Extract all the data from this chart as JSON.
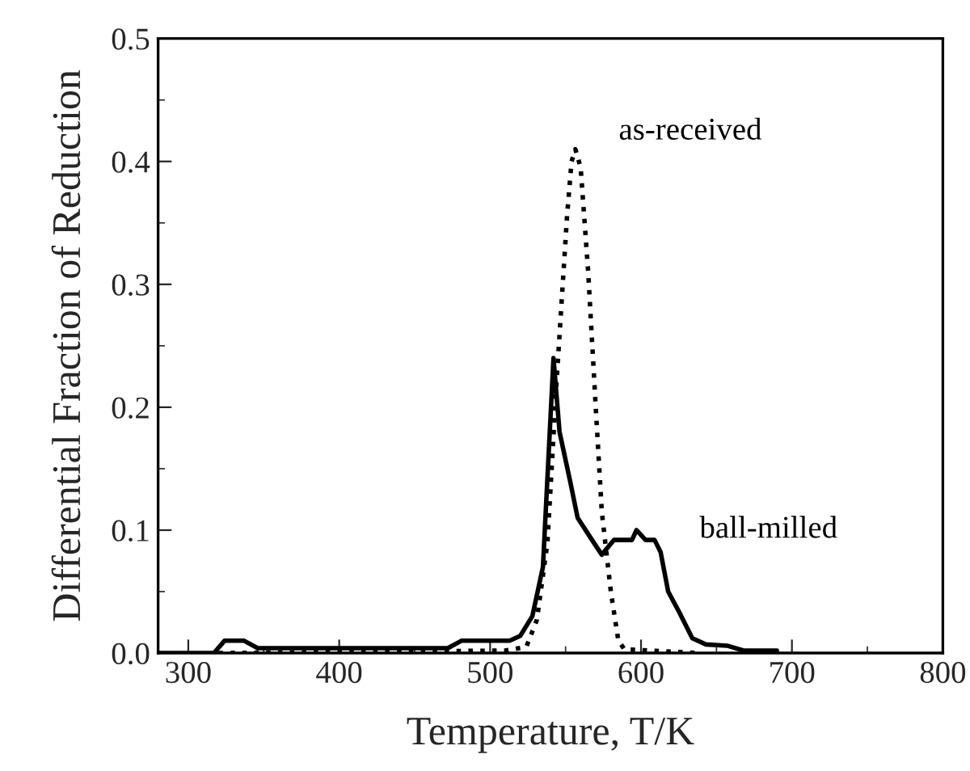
{
  "chart_data": {
    "type": "line",
    "xlabel": "Temperature, T/K",
    "ylabel": "Differential Fraction of Reduction",
    "xlim": [
      280,
      800
    ],
    "xticks": [
      300,
      400,
      500,
      600,
      700,
      800
    ],
    "ylim": [
      0,
      0.5
    ],
    "yticks": [
      {
        "value": 0,
        "label": "0.0"
      },
      {
        "value": 0.1,
        "label": "0.1"
      },
      {
        "value": 0.2,
        "label": "0.2"
      },
      {
        "value": 0.3,
        "label": "0.3"
      },
      {
        "value": 0.4,
        "label": "0.4"
      },
      {
        "value": 0.5,
        "label": "0.5"
      }
    ],
    "grid": false,
    "legend": false,
    "marker": "none",
    "series": [
      {
        "name": "ball-milled",
        "color": "#000000",
        "line_style": "solid",
        "x": [
          280,
          317,
          324,
          337,
          346,
          472,
          481,
          513,
          520,
          528,
          535,
          542,
          546,
          553,
          558,
          567,
          574,
          582,
          594,
          597,
          603,
          609,
          613,
          618,
          625,
          634,
          643,
          657,
          668,
          690
        ],
        "values": [
          0,
          0,
          0.01,
          0.01,
          0.004,
          0.004,
          0.01,
          0.01,
          0.014,
          0.03,
          0.07,
          0.24,
          0.18,
          0.14,
          0.11,
          0.093,
          0.08,
          0.092,
          0.092,
          0.1,
          0.092,
          0.092,
          0.082,
          0.05,
          0.034,
          0.012,
          0.007,
          0.006,
          0.002,
          0.002
        ]
      },
      {
        "name": "as-received",
        "color": "#000000",
        "line_style": "dotted",
        "x": [
          320,
          510,
          524,
          531,
          538,
          544,
          551,
          554,
          556.5,
          560,
          565,
          570,
          574,
          580,
          585,
          589,
          639
        ],
        "values": [
          0,
          0.002,
          0.005,
          0.027,
          0.09,
          0.22,
          0.356,
          0.4,
          0.41,
          0.395,
          0.31,
          0.2,
          0.115,
          0.05,
          0.01,
          0.003,
          0
        ]
      }
    ]
  }
}
